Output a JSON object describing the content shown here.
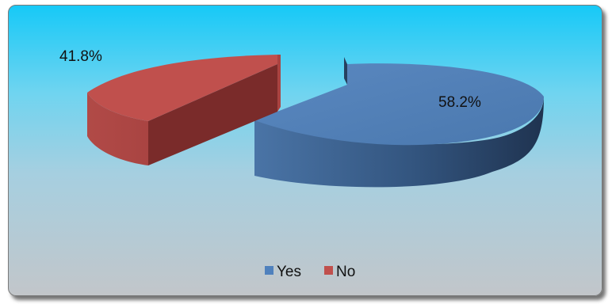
{
  "chart_data": {
    "type": "pie",
    "style": "3d-exploded",
    "categories": [
      "Yes",
      "No"
    ],
    "values": [
      58.2,
      41.8
    ],
    "data_labels": [
      "58.2%",
      "41.8%"
    ],
    "colors": [
      "#4f81bd",
      "#c0504d"
    ],
    "legend": {
      "position": "bottom",
      "entries": [
        "Yes",
        "No"
      ]
    }
  }
}
